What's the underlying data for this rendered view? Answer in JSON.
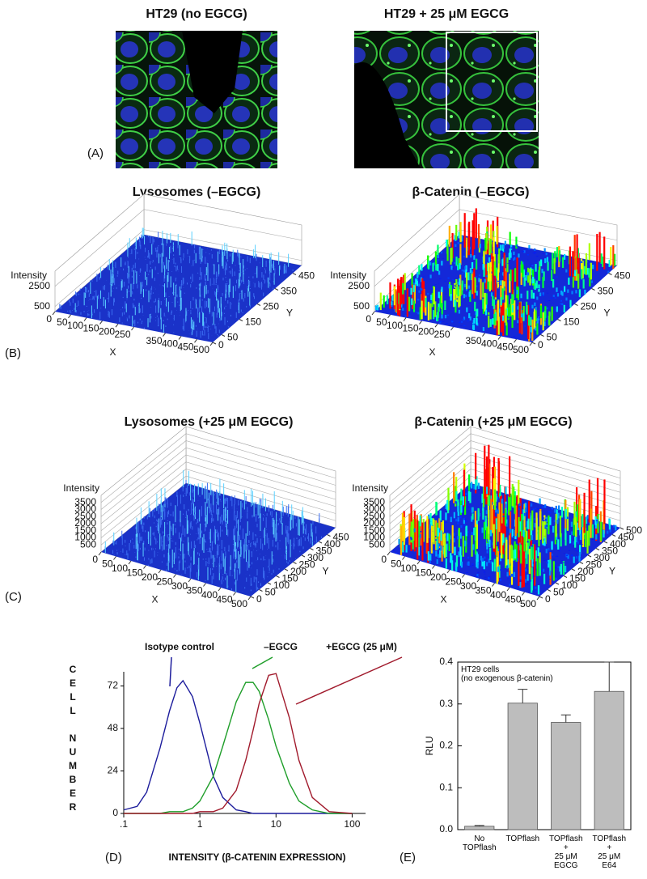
{
  "panel_a": {
    "label": "(A)",
    "images": [
      {
        "title": "HT29 (no EGCG)"
      },
      {
        "title": "HT29 + 25 μM EGCG"
      }
    ]
  },
  "panel_b": {
    "label": "(B)",
    "plots": [
      {
        "title": "Lysosomes (–EGCG)",
        "colormap": "blue",
        "z_label": "Intensity",
        "x_label": "X",
        "y_label": "Y",
        "xlim": [
          0,
          500
        ],
        "ylim": [
          0,
          500
        ],
        "zlim": [
          0,
          4000
        ],
        "xticks": [
          0,
          50,
          100,
          150,
          200,
          250,
          350,
          400,
          450,
          500
        ],
        "yticks": [
          0,
          50,
          150,
          250,
          350,
          450
        ],
        "zticks": [
          500,
          2500
        ]
      },
      {
        "title": "β-Catenin (–EGCG)",
        "colormap": "jet",
        "z_label": "Intensity",
        "x_label": "X",
        "y_label": "Y",
        "xlim": [
          0,
          500
        ],
        "ylim": [
          0,
          500
        ],
        "zlim": [
          0,
          4000
        ],
        "xticks": [
          0,
          50,
          100,
          150,
          200,
          250,
          350,
          400,
          450,
          500
        ],
        "yticks": [
          0,
          50,
          150,
          250,
          350,
          450
        ],
        "zticks": [
          500,
          2500
        ]
      }
    ]
  },
  "panel_c": {
    "label": "(C)",
    "plots": [
      {
        "title": "Lysosomes (+25 μM EGCG)",
        "colormap": "blue",
        "z_label": "Intensity",
        "x_label": "X",
        "y_label": "Y",
        "xlim": [
          0,
          500
        ],
        "ylim": [
          0,
          500
        ],
        "zlim": [
          0,
          4000
        ],
        "xticks": [
          0,
          50,
          100,
          150,
          200,
          250,
          300,
          350,
          400,
          450,
          500
        ],
        "yticks": [
          0,
          50,
          100,
          150,
          200,
          250,
          300,
          350,
          400,
          450
        ],
        "zticks": [
          500,
          1000,
          1500,
          2000,
          2500,
          3000,
          3500
        ]
      },
      {
        "title": "β-Catenin (+25 μM EGCG)",
        "colormap": "jet",
        "z_label": "Intensity",
        "x_label": "X",
        "y_label": "Y",
        "xlim": [
          0,
          500
        ],
        "ylim": [
          0,
          500
        ],
        "zlim": [
          0,
          4000
        ],
        "xticks": [
          0,
          50,
          100,
          150,
          200,
          250,
          300,
          350,
          400,
          450,
          500
        ],
        "yticks": [
          0,
          50,
          100,
          150,
          200,
          250,
          300,
          350,
          400,
          450,
          500
        ],
        "zticks": [
          500,
          1000,
          1500,
          2000,
          2500,
          3000,
          3500
        ]
      }
    ]
  },
  "chart_data": [
    {
      "type": "line",
      "label": "(D)",
      "x_label": "INTENSITY (β-CATENIN EXPRESSION)",
      "y_label": "CELL NUMBER",
      "x_log": true,
      "x": [
        0.1,
        0.15,
        0.2,
        0.3,
        0.4,
        0.5,
        0.6,
        0.8,
        1,
        1.5,
        2,
        3,
        4,
        5,
        6,
        8,
        10,
        15,
        20,
        30,
        50,
        100
      ],
      "series": [
        {
          "name": "Isotype control",
          "color": "#1c1c9c",
          "values": [
            2,
            4,
            12,
            37,
            58,
            71,
            75,
            66,
            51,
            21,
            9,
            2,
            1,
            0,
            0,
            0,
            0,
            0,
            0,
            0,
            0,
            0
          ]
        },
        {
          "name": "–EGCG",
          "color": "#1f9e2a",
          "values": [
            0,
            0,
            0,
            0,
            1,
            1,
            1,
            3,
            7,
            21,
            38,
            63,
            74,
            74,
            69,
            53,
            38,
            17,
            7,
            2,
            0,
            0
          ]
        },
        {
          "name": "+EGCG (25 μM)",
          "color": "#a11a2c",
          "values": [
            0,
            0,
            0,
            0,
            0,
            0,
            0,
            0,
            1,
            1,
            3,
            13,
            30,
            47,
            62,
            78,
            79,
            54,
            30,
            9,
            1,
            0
          ]
        }
      ],
      "xlim": [
        0.1,
        150
      ],
      "ylim": [
        0,
        80
      ],
      "xticks": [
        {
          "value": 0.1,
          "label": ".1"
        },
        1,
        10,
        100
      ],
      "yticks": [
        0,
        24,
        48,
        72
      ]
    },
    {
      "type": "bar",
      "label": "(E)",
      "annotation": "HT29 cells\n(no exogenous β-catenin)",
      "y_label": "RLU",
      "categories": [
        "No\nTOPflash",
        "TOPflash",
        "TOPflash\n+\n25 μM\nEGCG",
        "TOPflash\n+\n25 μM\nE64"
      ],
      "values": [
        0.008,
        0.302,
        0.256,
        0.33
      ],
      "errors": [
        0.002,
        0.033,
        0.018,
        0.07
      ],
      "color": "#bdbdbd",
      "ylim": [
        0,
        0.4
      ],
      "yticks": [
        {
          "value": 0,
          "label": "0.0"
        },
        0.1,
        0.2,
        0.3,
        0.4
      ]
    }
  ]
}
